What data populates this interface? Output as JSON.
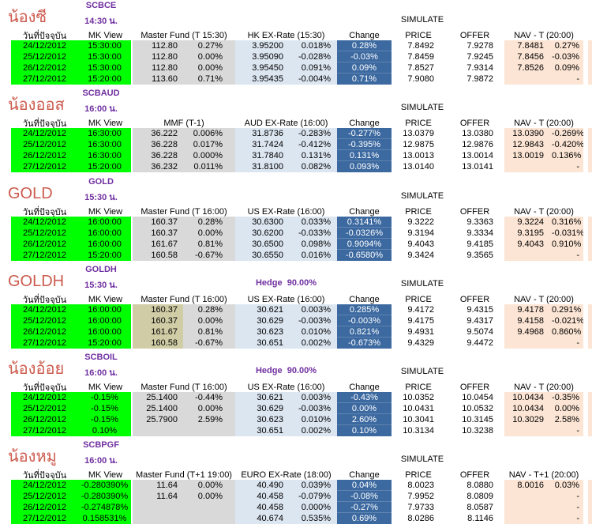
{
  "colors": {
    "green": "#00FF00",
    "mf-bg": "#D9D9D9",
    "mf-bg-goldh": "#D0CDA6",
    "ex-bg": "#DCE6F1",
    "chg-bg": "#3C69A0",
    "nav-bg": "#FCE5D4",
    "purple": "#7030A0",
    "name-red": "#CC5B4E"
  },
  "labels": {
    "date_header": "วันที่ปัจจุบัน",
    "mk_view": "MK View",
    "change": "Change",
    "simulate": "SIMULATE",
    "price": "PRICE",
    "offer": "OFFER"
  },
  "sections": [
    {
      "name": "น้องซี",
      "code": "SCBCE",
      "time": "14:30 น.",
      "hedge": null,
      "mf_header": "Master Fund (T 15:30)",
      "ex_header": "HK EX-Rate (15:30)",
      "nav_header": "NAV - T (20:00)",
      "rows": [
        {
          "date": "24/12/2012",
          "mk": "15:30:00",
          "mf": "112.80",
          "mf_pct": "0.27%",
          "ex": "3.95200",
          "ex_pct": "0.018%",
          "change": "0.28%",
          "price": "7.8492",
          "offer": "7.9278",
          "nav": "7.8481",
          "nav_pct": "0.27%"
        },
        {
          "date": "25/12/2012",
          "mk": "15:30:00",
          "mf": "112.80",
          "mf_pct": "0.00%",
          "ex": "3.95090",
          "ex_pct": "-0.028%",
          "change": "-0.03%",
          "price": "7.8459",
          "offer": "7.9245",
          "nav": "7.8456",
          "nav_pct": "-0.03%"
        },
        {
          "date": "26/12/2012",
          "mk": "15:30:00",
          "mf": "112.80",
          "mf_pct": "0.00%",
          "ex": "3.95450",
          "ex_pct": "0.091%",
          "change": "0.09%",
          "price": "7.8527",
          "offer": "7.9314",
          "nav": "7.8526",
          "nav_pct": "0.09%"
        },
        {
          "date": "27/12/2012",
          "mk": "15:20:00",
          "mf": "113.60",
          "mf_pct": "0.71%",
          "ex": "3.95435",
          "ex_pct": "-0.004%",
          "change": "0.71%",
          "price": "7.9080",
          "offer": "7.9872",
          "nav": "",
          "nav_pct": "-"
        }
      ]
    },
    {
      "name": "น้องออส",
      "code": "SCBAUD",
      "time": "16:00 น.",
      "hedge": null,
      "mf_header": "MMF (T-1)",
      "ex_header": "AUD EX-Rate (16:00)",
      "nav_header": "NAV - T (20:00)",
      "rows": [
        {
          "date": "24/12/2012",
          "mk": "16:30:00",
          "mf": "36.222",
          "mf_pct": "0.006%",
          "ex": "31.8736",
          "ex_pct": "-0.283%",
          "change": "-0.277%",
          "price": "13.0379",
          "offer": "13.0380",
          "nav": "13.0390",
          "nav_pct": "-0.269%"
        },
        {
          "date": "25/12/2012",
          "mk": "16:30:00",
          "mf": "36.228",
          "mf_pct": "0.017%",
          "ex": "31.7424",
          "ex_pct": "-0.412%",
          "change": "-0.395%",
          "price": "12.9875",
          "offer": "12.9876",
          "nav": "12.9843",
          "nav_pct": "-0.420%"
        },
        {
          "date": "26/12/2012",
          "mk": "16:30:00",
          "mf": "36.228",
          "mf_pct": "0.000%",
          "ex": "31.7840",
          "ex_pct": "0.131%",
          "change": "0.131%",
          "price": "13.0013",
          "offer": "13.0014",
          "nav": "13.0019",
          "nav_pct": "0.136%"
        },
        {
          "date": "27/12/2012",
          "mk": "15:20:00",
          "mf": "36.232",
          "mf_pct": "0.011%",
          "ex": "31.8100",
          "ex_pct": "0.082%",
          "change": "0.093%",
          "price": "13.0140",
          "offer": "13.0141",
          "nav": "",
          "nav_pct": "-"
        }
      ]
    },
    {
      "name": "GOLD",
      "code": "GOLD",
      "time": "15:30 น.",
      "hedge": null,
      "mf_header": "Master Fund (T 16:00)",
      "ex_header": "US EX-Rate (16:00)",
      "nav_header": "NAV - T (20:00)",
      "rows": [
        {
          "date": "24/12/2012",
          "mk": "16:00:00",
          "mf": "160.37",
          "mf_pct": "0.28%",
          "ex": "30.6300",
          "ex_pct": "0.033%",
          "change": "0.3141%",
          "price": "9.3222",
          "offer": "9.3363",
          "nav": "9.3224",
          "nav_pct": "0.316%"
        },
        {
          "date": "25/12/2012",
          "mk": "16:00:00",
          "mf": "160.37",
          "mf_pct": "0.00%",
          "ex": "30.6200",
          "ex_pct": "-0.033%",
          "change": "-0.0326%",
          "price": "9.3194",
          "offer": "9.3334",
          "nav": "9.3195",
          "nav_pct": "-0.031%"
        },
        {
          "date": "26/12/2012",
          "mk": "16:00:00",
          "mf": "161.67",
          "mf_pct": "0.81%",
          "ex": "30.6500",
          "ex_pct": "0.098%",
          "change": "0.9094%",
          "price": "9.4043",
          "offer": "9.4185",
          "nav": "9.4043",
          "nav_pct": "0.910%"
        },
        {
          "date": "27/12/2012",
          "mk": "15:20:00",
          "mf": "160.58",
          "mf_pct": "-0.67%",
          "ex": "30.6550",
          "ex_pct": "0.016%",
          "change": "-0.6580%",
          "price": "9.3424",
          "offer": "9.3565",
          "nav": "",
          "nav_pct": "-"
        }
      ]
    },
    {
      "name": "GOLDH",
      "code": "GOLDH",
      "time": "15:30 น.",
      "hedge": "Hedge  90.00%",
      "mf_header": "Master Fund (T 16:00)",
      "ex_header": "US EX-Rate (16:00)",
      "nav_header": "NAV - T (20:00)",
      "mf_value_bg": "#D0CDA6",
      "rows": [
        {
          "date": "24/12/2012",
          "mk": "16:00:00",
          "mf": "160.37",
          "mf_pct": "0.28%",
          "ex": "30.621",
          "ex_pct": "0.003%",
          "change": "0.285%",
          "price": "9.4172",
          "offer": "9.4315",
          "nav": "9.4178",
          "nav_pct": "0.291%"
        },
        {
          "date": "25/12/2012",
          "mk": "16:00:00",
          "mf": "160.37",
          "mf_pct": "0.00%",
          "ex": "30.629",
          "ex_pct": "-0.003%",
          "change": "-0.003%",
          "price": "9.4175",
          "offer": "9.4317",
          "nav": "9.4158",
          "nav_pct": "-0.021%"
        },
        {
          "date": "26/12/2012",
          "mk": "16:00:00",
          "mf": "161.67",
          "mf_pct": "0.81%",
          "ex": "30.623",
          "ex_pct": "0.010%",
          "change": "0.821%",
          "price": "9.4931",
          "offer": "9.5074",
          "nav": "9.4968",
          "nav_pct": "0.860%"
        },
        {
          "date": "27/12/2012",
          "mk": "15:20:00",
          "mf": "160.58",
          "mf_pct": "-0.67%",
          "ex": "30.651",
          "ex_pct": "0.002%",
          "change": "-0.673%",
          "price": "9.4329",
          "offer": "9.4472",
          "nav": "",
          "nav_pct": "-"
        }
      ]
    },
    {
      "name": "น้องอ้อย",
      "code": "SCBOIL",
      "time": "16:00 น.",
      "hedge": "Hedge  90.00%",
      "mf_header": "Master Fund (T 16:00)",
      "ex_header": "US EX-Rate (16:00)",
      "nav_header": "NAV - T (20:00)",
      "rows": [
        {
          "date": "24/12/2012",
          "mk": "-0.15%",
          "mf": "25.1400",
          "mf_pct": "-0.44%",
          "ex": "30.621",
          "ex_pct": "0.003%",
          "change": "-0.43%",
          "price": "10.0352",
          "offer": "10.0454",
          "nav": "10.0434",
          "nav_pct": "-0.35%"
        },
        {
          "date": "25/12/2012",
          "mk": "-0.15%",
          "mf": "25.1400",
          "mf_pct": "0.00%",
          "ex": "30.629",
          "ex_pct": "-0.003%",
          "change": "0.00%",
          "price": "10.0431",
          "offer": "10.0532",
          "nav": "10.0434",
          "nav_pct": "0.00%"
        },
        {
          "date": "26/12/2012",
          "mk": "-0.15%",
          "mf": "25.7900",
          "mf_pct": "2.59%",
          "ex": "30.623",
          "ex_pct": "0.010%",
          "change": "2.60%",
          "price": "10.3041",
          "offer": "10.3145",
          "nav": "10.3029",
          "nav_pct": "2.58%"
        },
        {
          "date": "27/12/2012",
          "mk": "0.10%",
          "mf": "",
          "mf_pct": "",
          "ex": "30.651",
          "ex_pct": "0.002%",
          "change": "0.10%",
          "price": "10.3134",
          "offer": "10.3238",
          "nav": "",
          "nav_pct": "-"
        }
      ]
    },
    {
      "name": "น้องหมู",
      "code": "SCBPGF",
      "time": "16:00 น.",
      "hedge": null,
      "mf_header": "Master Fund (T+1 19:00)",
      "ex_header": "EURO EX-Rate (18:00)",
      "nav_header": "NAV - T+1 (20:00)",
      "rows": [
        {
          "date": "24/12/2012",
          "mk": "-0.280390%",
          "mf": "11.64",
          "mf_pct": "0.00%",
          "ex": "40.490",
          "ex_pct": "0.039%",
          "change": "0.04%",
          "price": "8.0023",
          "offer": "8.0880",
          "nav": "8.0016",
          "nav_pct": "0.03%"
        },
        {
          "date": "25/12/2012",
          "mk": "-0.280390%",
          "mf": "11.64",
          "mf_pct": "0.00%",
          "ex": "40.458",
          "ex_pct": "-0.079%",
          "change": "-0.08%",
          "price": "7.9952",
          "offer": "8.0809",
          "nav": "",
          "nav_pct": "-"
        },
        {
          "date": "26/12/2012",
          "mk": "-0.274878%",
          "mf": "",
          "mf_pct": "",
          "ex": "40.458",
          "ex_pct": "0.000%",
          "change": "-0.27%",
          "price": "7.9733",
          "offer": "8.0587",
          "nav": "",
          "nav_pct": "-"
        },
        {
          "date": "27/12/2012",
          "mk": "0.158531%",
          "mf": "",
          "mf_pct": "",
          "ex": "40.674",
          "ex_pct": "0.535%",
          "change": "0.69%",
          "price": "8.0286",
          "offer": "8.1146",
          "nav": "",
          "nav_pct": "-"
        }
      ]
    }
  ]
}
